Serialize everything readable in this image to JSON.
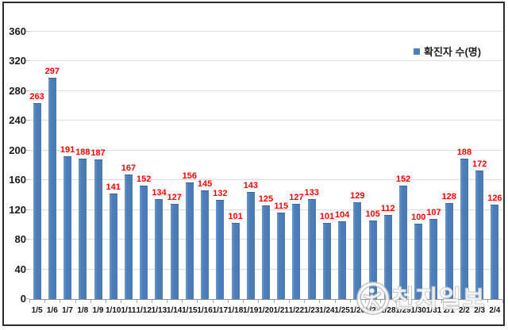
{
  "chart_data": {
    "type": "bar",
    "title": "",
    "series_name": "확진자 수(명)",
    "categories": [
      "1/5",
      "1/6",
      "1/7",
      "1/8",
      "1/9",
      "1/10",
      "1/11",
      "1/12",
      "1/13",
      "1/14",
      "1/15",
      "1/16",
      "1/17",
      "1/18",
      "1/19",
      "1/20",
      "1/21",
      "1/22",
      "1/23",
      "1/24",
      "1/25",
      "1/26",
      "1/27",
      "1/28",
      "1/29",
      "1/30",
      "1/31",
      "2/1",
      "2/2",
      "2/3",
      "2/4"
    ],
    "values": [
      263,
      297,
      191,
      188,
      187,
      141,
      167,
      152,
      134,
      127,
      156,
      145,
      132,
      101,
      143,
      125,
      115,
      127,
      133,
      101,
      104,
      129,
      105,
      112,
      152,
      100,
      107,
      128,
      188,
      172,
      126
    ],
    "ylim": [
      0,
      360
    ],
    "yticks": [
      0,
      40,
      80,
      120,
      160,
      200,
      240,
      280,
      320,
      360
    ],
    "grid": true,
    "legend_position": "top-right",
    "bar_color": "#4e7fba",
    "value_label_color": "#ff0000",
    "grid_color": "#d9dee6",
    "axis_color": "#8f8f8f"
  },
  "legend": {
    "label": "확진자 수(명)",
    "swatch_color": "#4e7fba"
  },
  "watermark": {
    "text": "천지일보",
    "logo": "person-in-circle"
  }
}
